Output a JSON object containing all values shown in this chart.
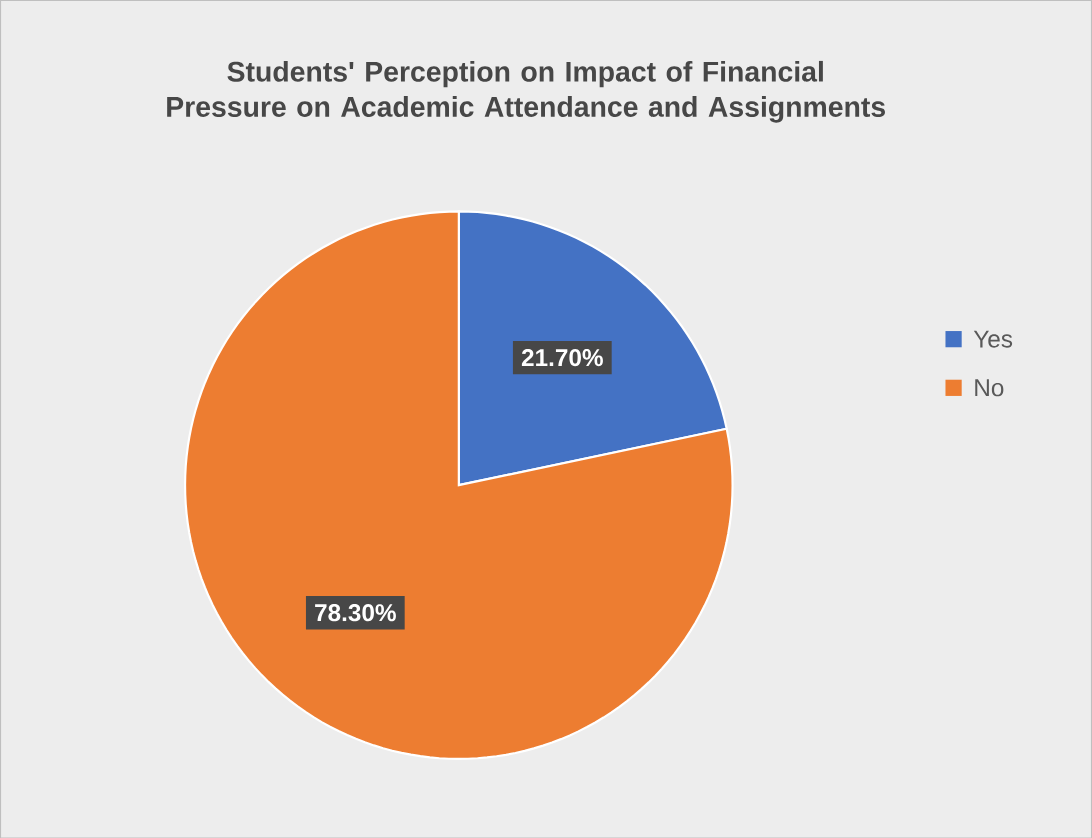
{
  "chart_data": {
    "type": "pie",
    "title": "Students' Perception on Impact of Financial Pressure on Academic Attendance and Assignments",
    "categories": [
      "Yes",
      "No"
    ],
    "values": [
      21.7,
      78.3
    ],
    "colors": [
      "#4472c4",
      "#ed7d31"
    ],
    "value_labels": [
      "21.70%",
      "78.30%"
    ],
    "legend": "right"
  }
}
